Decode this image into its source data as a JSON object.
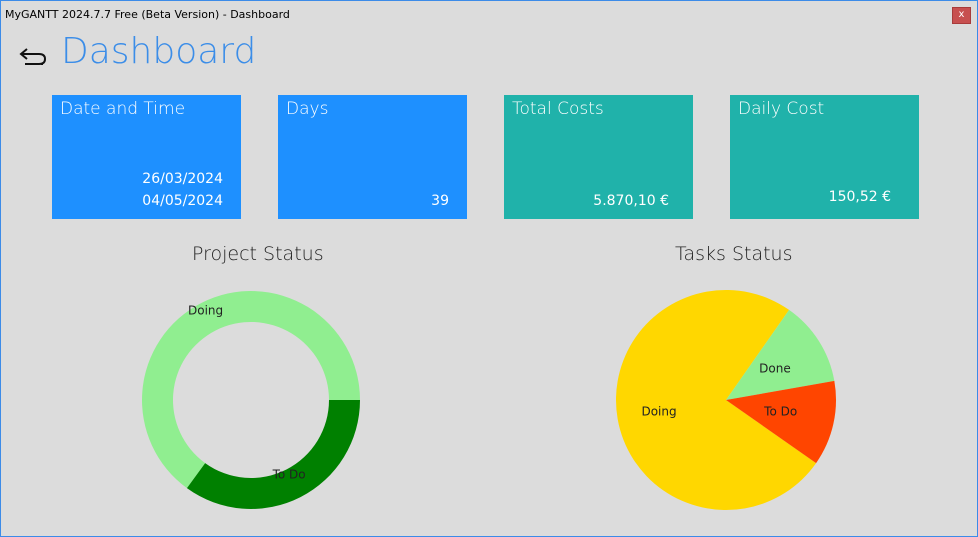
{
  "window": {
    "title": "MyGANTT 2024.7.7 Free (Beta Version) - Dashboard",
    "close_label": "x"
  },
  "header": {
    "title": "Dashboard"
  },
  "tiles": [
    {
      "label": "Date and Time",
      "value1": "26/03/2024",
      "value2": "04/05/2024"
    },
    {
      "label": "Days",
      "value1": "39"
    },
    {
      "label": "Total Costs",
      "value1": "5.870,10 €"
    },
    {
      "label": "Daily Cost",
      "value1": "150,52 €"
    }
  ],
  "colors": {
    "tile_blue": "#1e90ff",
    "tile_teal": "#20b2aa",
    "doing_light": "#90ee90",
    "todo_dark": "#008000",
    "doing_yellow": "#ffd700",
    "done_green": "#90ee90",
    "todo_red": "#ff4500"
  },
  "chart_data": [
    {
      "type": "pie",
      "title": "Project Status",
      "style": "donut",
      "labels": [
        "Doing",
        "To Do"
      ],
      "values": [
        65,
        35
      ],
      "colors": [
        "#90ee90",
        "#008000"
      ]
    },
    {
      "type": "pie",
      "title": "Tasks Status",
      "labels": [
        "Doing",
        "Done",
        "To Do"
      ],
      "values": [
        75,
        12.5,
        12.5
      ],
      "colors": [
        "#ffd700",
        "#90ee90",
        "#ff4500"
      ]
    }
  ]
}
